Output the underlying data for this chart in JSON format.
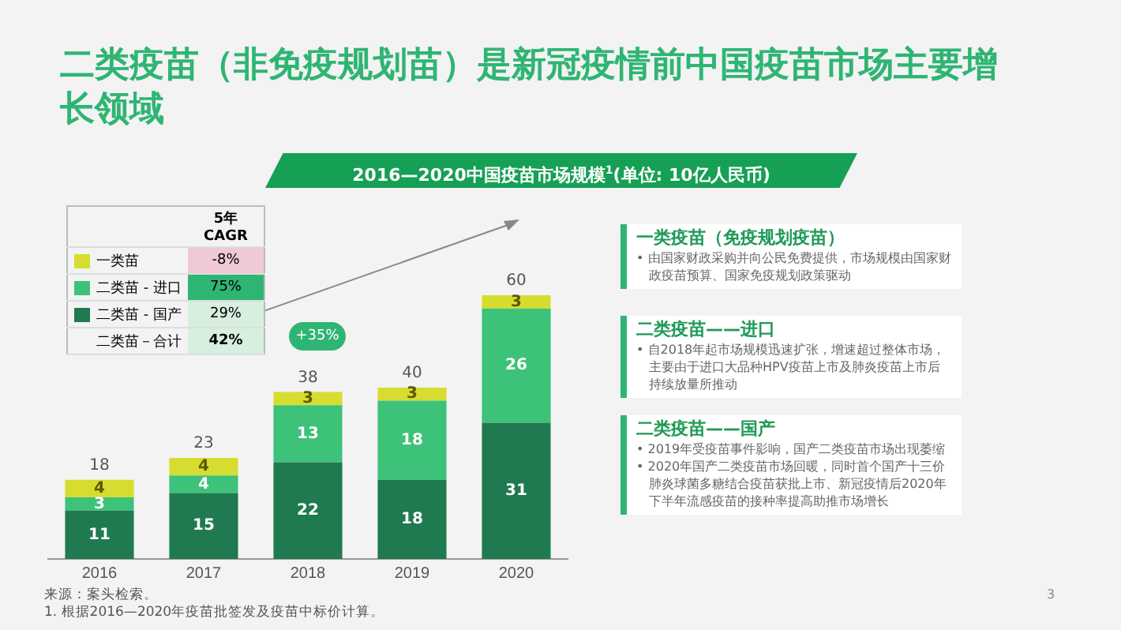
{
  "chart_data": {
    "type": "bar",
    "title": "二类疫苗（非免疫规划苗）是新冠疫情前中国疫苗市场主要增长领域",
    "subtitle": "2016—2020中国疫苗市场规模$^{1}$(单位: 10亿人民币)",
    "categories": [
      "2016",
      "2017",
      "2018",
      "2019",
      "2020"
    ],
    "series": [
      {
        "name": "二类苗 - 国产",
        "color": "#1f7a4f",
        "values": [
          11,
          15,
          22,
          18,
          31
        ]
      },
      {
        "name": "二类苗 - 进口",
        "color": "#3dc27a",
        "values": [
          3,
          4,
          13,
          18,
          26
        ]
      },
      {
        "name": "一类苗",
        "color": "#d6dd2e",
        "values": [
          4,
          4,
          3,
          3,
          3
        ]
      }
    ],
    "stacked": true,
    "data_labels": true,
    "totals": [
      "18",
      "23",
      "38",
      "40",
      "60"
    ],
    "tick_labels": "x",
    "grid": false,
    "legend": "top left",
    "annotations": [
      "5年CAGR",
      "-8%",
      "75%",
      "29%",
      "二类苗－合计",
      "42%",
      "+35%",
      "一类疫苗（免疫规划疫苗）",
      "• 由国家财政采购并向公民免费提供，市场规模由国家财政疫苗预算、国家免疫规划政策驱动",
      "二类疫苗——进口",
      "• 自2018年起市场规模迅速扩张，增速超过整体市场，主要由于进口大品种HPV疫苗上市及肺炎疫苗上市后持续放量所推动",
      "二类疫苗——国产",
      "• 2019年受疫苗事件影响，国产二类疫苗市场出现萎缩",
      "• 2020年国产二类疫苗市场回暖，同时首个国产十三价肺炎球菌多糖结合疫苗获批上市、新冠疫情后2020年下半年流感疫苗的接种率提高助推市场增长",
      "来源：案头检索。",
      "1. 根据2016—2020年疫苗批签发及疫苗中标价计算。",
      "3"
    ]
  }
}
